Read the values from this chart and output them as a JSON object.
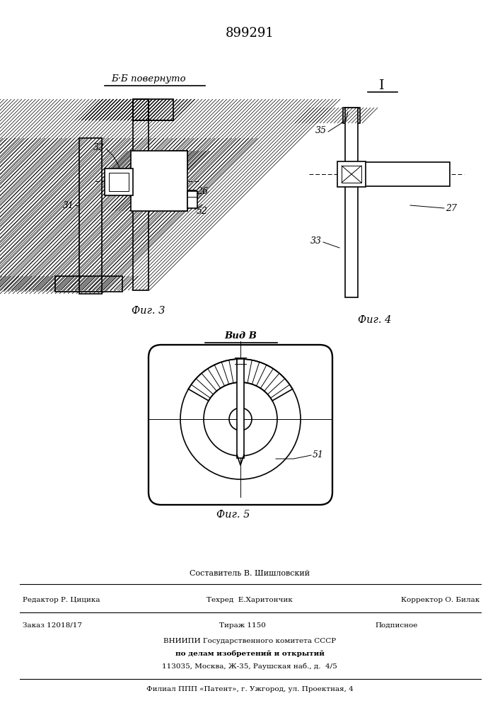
{
  "patent_number": "899291",
  "bg_color": "#ffffff",
  "lc": "#000000",
  "fig3_title": "Б·Б повернуто",
  "fig4_title": "I",
  "fig5_title": "Вид В",
  "fig3_label": "Фиг. 3",
  "fig4_label": "Фиг. 4",
  "fig5_label": "Фиг. 5",
  "footer_autor": "Составитель В. Шишловский",
  "footer_col1": "Редактор Р. Цицика",
  "footer_col2": "Техред  Е.Харитончик",
  "footer_col3": "Корректор О. Билак",
  "footer_order": "Заказ 12018/17",
  "footer_tirazh": "Тираж 1150",
  "footer_podp": "Подписное",
  "footer_vniip1": "ВНИИПИ Государственного комитета СССР",
  "footer_vniip2": "по делам изобретений и открытий",
  "footer_vniip3": "113035, Москва, Ж-35, Раушская наб., д.  4/5",
  "footer_filial": "Филиал ППП «Патент», г. Ужгород, ул. Проектная, 4"
}
